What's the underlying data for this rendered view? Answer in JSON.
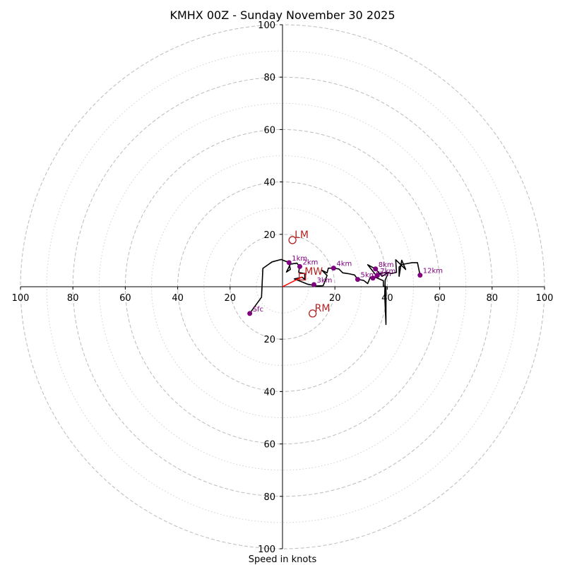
{
  "chart_data": {
    "type": "hodograph",
    "title": "KMHX 00Z - Sunday November 30 2025",
    "xlabel": "Speed in knots",
    "units": "knots",
    "range": [
      -100,
      100
    ],
    "ring_major": [
      20,
      40,
      60,
      80,
      100
    ],
    "ring_minor": [
      10,
      30,
      50,
      70,
      90
    ],
    "x_ticks": [
      {
        "value": -100,
        "label": "100"
      },
      {
        "value": -80,
        "label": "80"
      },
      {
        "value": -60,
        "label": "60"
      },
      {
        "value": -40,
        "label": "40"
      },
      {
        "value": -20,
        "label": "20"
      },
      {
        "value": 20,
        "label": "20"
      },
      {
        "value": 40,
        "label": "40"
      },
      {
        "value": 60,
        "label": "60"
      },
      {
        "value": 80,
        "label": "80"
      },
      {
        "value": 100,
        "label": "100"
      }
    ],
    "y_ticks": [
      {
        "value": 100,
        "label": "100"
      },
      {
        "value": 80,
        "label": "80"
      },
      {
        "value": 60,
        "label": "60"
      },
      {
        "value": 40,
        "label": "40"
      },
      {
        "value": 20,
        "label": "20"
      },
      {
        "value": -20,
        "label": "20"
      },
      {
        "value": -40,
        "label": "40"
      },
      {
        "value": -60,
        "label": "60"
      },
      {
        "value": -80,
        "label": "80"
      },
      {
        "value": -100,
        "label": "100"
      }
    ],
    "trace": [
      [
        -12.5,
        -10.2
      ],
      [
        -8,
        -4
      ],
      [
        -7.5,
        7
      ],
      [
        -4,
        9.5
      ],
      [
        -0.5,
        10.4
      ],
      [
        2.5,
        9.2
      ],
      [
        3,
        6.6
      ],
      [
        1.5,
        5.6
      ],
      [
        3,
        8.6
      ],
      [
        5.5,
        9
      ],
      [
        6.5,
        7.8
      ],
      [
        6.2,
        5.5
      ],
      [
        8.5,
        5
      ],
      [
        8.5,
        2.8
      ],
      [
        7.5,
        3.6
      ],
      [
        4.5,
        3
      ],
      [
        6.5,
        2.2
      ],
      [
        9.5,
        1
      ],
      [
        13,
        0.3
      ],
      [
        15.5,
        0.4
      ],
      [
        16,
        1.6
      ],
      [
        17,
        4.3
      ],
      [
        15,
        6.3
      ],
      [
        17,
        5.3
      ],
      [
        17.5,
        7.1
      ],
      [
        19.5,
        7.1
      ],
      [
        21.5,
        6.8
      ],
      [
        23,
        5.3
      ],
      [
        25,
        5
      ],
      [
        27.5,
        4.5
      ],
      [
        28.7,
        2.8
      ],
      [
        31,
        2.4
      ],
      [
        32.5,
        1.2
      ],
      [
        33.5,
        3.6
      ],
      [
        35.5,
        3.6
      ],
      [
        38.5,
        2.3
      ],
      [
        38.5,
        0.1
      ],
      [
        39.5,
        0.1
      ],
      [
        39.5,
        -14.4
      ],
      [
        39,
        -3
      ],
      [
        39.2,
        2.6
      ],
      [
        40.5,
        5.5
      ],
      [
        38,
        4
      ],
      [
        35.5,
        6.8
      ],
      [
        32.5,
        8.4
      ],
      [
        36,
        4
      ],
      [
        36.5,
        5
      ],
      [
        40,
        5.5
      ],
      [
        41.5,
        5
      ],
      [
        43.5,
        5.5
      ],
      [
        43.2,
        10.3
      ],
      [
        47,
        6.6
      ],
      [
        45.5,
        10.1
      ],
      [
        44.5,
        4
      ],
      [
        44.5,
        7.5
      ],
      [
        45.5,
        8.5
      ],
      [
        49.5,
        9.2
      ],
      [
        51.5,
        9.2
      ],
      [
        52.5,
        4.4
      ]
    ],
    "height_markers": [
      {
        "label": "Sfc",
        "u": -12.5,
        "v": -10.2
      },
      {
        "label": "1km",
        "u": 2.5,
        "v": 9.2
      },
      {
        "label": "2km",
        "u": 6.6,
        "v": 7.7
      },
      {
        "label": "3km",
        "u": 12.0,
        "v": 0.8
      },
      {
        "label": "4km",
        "u": 19.5,
        "v": 7.1
      },
      {
        "label": "5km",
        "u": 28.7,
        "v": 2.8
      },
      {
        "label": "6km",
        "u": 34.5,
        "v": 3.3
      },
      {
        "label": "7km",
        "u": 36.2,
        "v": 4.3
      },
      {
        "label": "8km",
        "u": 35.5,
        "v": 6.8
      },
      {
        "label": "12km",
        "u": 52.5,
        "v": 4.4
      }
    ],
    "storm_motion": [
      {
        "label": "LM",
        "u": 3.8,
        "v": 17.8
      },
      {
        "label": "RM",
        "u": 11.5,
        "v": -10.2
      },
      {
        "label": "MW",
        "u": 7.6,
        "v": 3.8
      }
    ],
    "mean_wind_vector": {
      "u": 7.6,
      "v": 3.8
    },
    "colors": {
      "trace": "#000000",
      "markers": "#800080",
      "storm": "#b22222",
      "mean_wind": "#ff0000",
      "grid": "#bbbbbb",
      "axes": "#000000"
    }
  }
}
